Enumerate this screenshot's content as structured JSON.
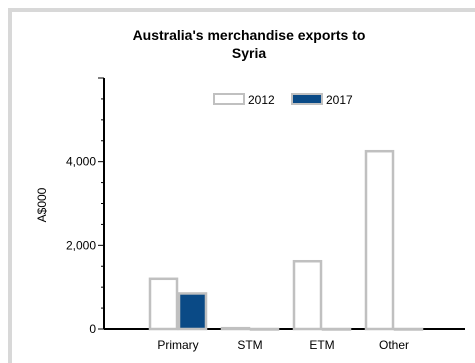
{
  "chart_data": {
    "type": "bar",
    "title_line1": "Australia's merchandise exports to",
    "title_line2": "Syria",
    "ylabel": "A$000",
    "xlabel": "",
    "categories": [
      "Primary",
      "STM",
      "ETM",
      "Other"
    ],
    "series": [
      {
        "name": "2012",
        "values": [
          1200,
          20,
          1620,
          4250
        ],
        "fill": "#ffffff",
        "stroke": "#c0c0c0"
      },
      {
        "name": "2017",
        "values": [
          850,
          0,
          0,
          0
        ],
        "fill": "#0a4a86",
        "stroke": "#c0c0c0"
      }
    ],
    "ylim": [
      0,
      6000
    ],
    "yticks": [
      0,
      2000,
      4000
    ],
    "ytick_labels": [
      "0",
      "2,000",
      "4,000"
    ],
    "legend_position": "top-right",
    "grid": false
  }
}
